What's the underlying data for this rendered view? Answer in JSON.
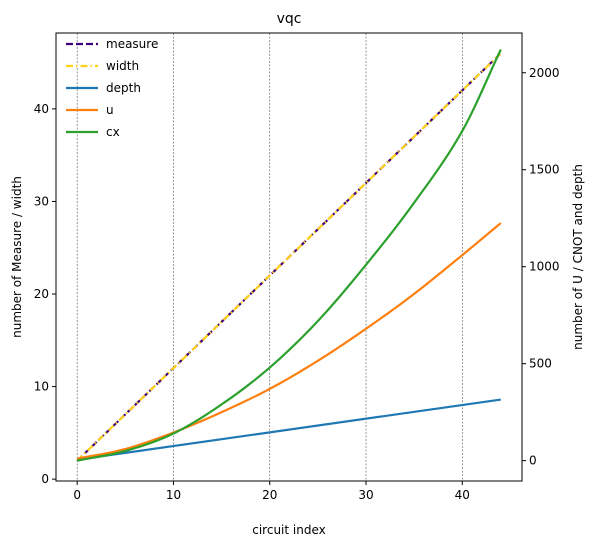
{
  "chart_data": {
    "type": "line",
    "title": "vqc",
    "xlabel": "circuit index",
    "ylabel_left": "number of Measure / width",
    "ylabel_right": "number of U / CNOT and depth",
    "xlim": [
      -2.2,
      46.2
    ],
    "ylim_left": [
      -0.2,
      48.2
    ],
    "ylim_right": [
      -105,
      2205
    ],
    "xticks": [
      0,
      10,
      20,
      30,
      40
    ],
    "yticks_left": [
      0,
      10,
      20,
      30,
      40
    ],
    "yticks_right": [
      0,
      500,
      1000,
      1500,
      2000
    ],
    "x_grid": true,
    "legend_position": "upper left",
    "series": [
      {
        "name": "measure",
        "axis": "left",
        "style": "dashed",
        "color": "#3f007d",
        "x": [
          0,
          44
        ],
        "y": [
          2,
          46
        ]
      },
      {
        "name": "width",
        "axis": "left",
        "style": "dashdot",
        "color": "#ffd11a",
        "x": [
          0,
          44
        ],
        "y": [
          2,
          46
        ]
      },
      {
        "name": "depth",
        "axis": "right",
        "style": "solid",
        "color": "#1f77b4",
        "x": [
          0,
          44
        ],
        "y": [
          5,
          315
        ]
      },
      {
        "name": "u",
        "axis": "right",
        "style": "solid",
        "color": "#ff7f0e",
        "x": [
          0,
          5,
          10,
          15,
          20,
          25,
          30,
          35,
          40,
          44
        ],
        "y": [
          10,
          60,
          145,
          250,
          370,
          515,
          680,
          860,
          1060,
          1225
        ]
      },
      {
        "name": "cx",
        "axis": "right",
        "style": "solid",
        "color": "#2ca02c",
        "x": [
          0,
          5,
          10,
          15,
          20,
          25,
          30,
          35,
          40,
          44
        ],
        "y": [
          0,
          50,
          140,
          290,
          480,
          720,
          1010,
          1330,
          1700,
          2120
        ]
      }
    ]
  }
}
